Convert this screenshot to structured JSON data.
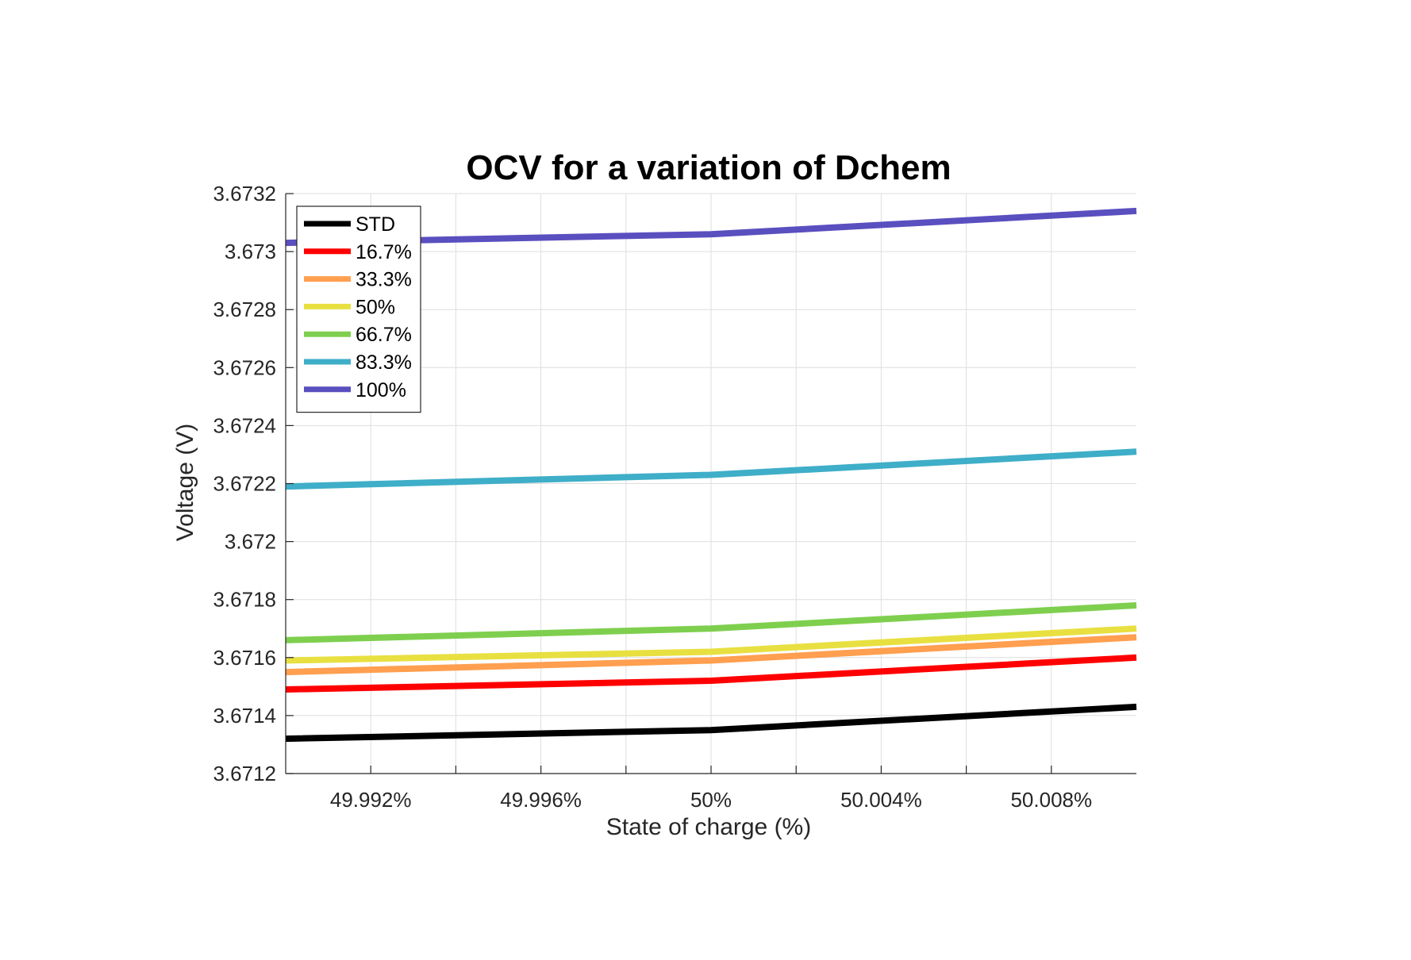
{
  "chart_data": {
    "type": "line",
    "title": "OCV for a variation of Dchem",
    "xlabel": "State of charge (%)",
    "ylabel": "Voltage (V)",
    "xlim": [
      49.99,
      50.01
    ],
    "ylim": [
      3.6712,
      3.6732
    ],
    "xticks": [
      49.992,
      49.996,
      50.0,
      50.004,
      50.008
    ],
    "xtick_labels": [
      "49.992%",
      "49.996%",
      "50%",
      "50.004%",
      "50.008%"
    ],
    "xticks_minor": [
      49.994,
      49.998,
      50.002,
      50.006
    ],
    "yticks": [
      3.6712,
      3.6714,
      3.6716,
      3.6718,
      3.672,
      3.6722,
      3.6724,
      3.6726,
      3.6728,
      3.673,
      3.6732
    ],
    "ytick_labels": [
      "3.6712",
      "3.6714",
      "3.6716",
      "3.6718",
      "3.672",
      "3.6722",
      "3.6724",
      "3.6726",
      "3.6728",
      "3.673",
      "3.6732"
    ],
    "grid": true,
    "legend_position": "top-left",
    "x": [
      49.99,
      50.0,
      50.01
    ],
    "series": [
      {
        "name": "STD",
        "color": "#000000",
        "values": [
          3.67132,
          3.67135,
          3.67143
        ]
      },
      {
        "name": "16.7%",
        "color": "#ff0000",
        "values": [
          3.67149,
          3.67152,
          3.6716
        ]
      },
      {
        "name": "33.3%",
        "color": "#ff9f4f",
        "values": [
          3.67155,
          3.67159,
          3.67167
        ]
      },
      {
        "name": "50%",
        "color": "#e8e040",
        "values": [
          3.67159,
          3.67162,
          3.6717
        ]
      },
      {
        "name": "66.7%",
        "color": "#7fcf4f",
        "values": [
          3.67166,
          3.6717,
          3.67178
        ]
      },
      {
        "name": "83.3%",
        "color": "#3faec8",
        "values": [
          3.67219,
          3.67223,
          3.67231
        ]
      },
      {
        "name": "100%",
        "color": "#5a4fbf",
        "values": [
          3.67303,
          3.67306,
          3.67314
        ]
      }
    ]
  }
}
